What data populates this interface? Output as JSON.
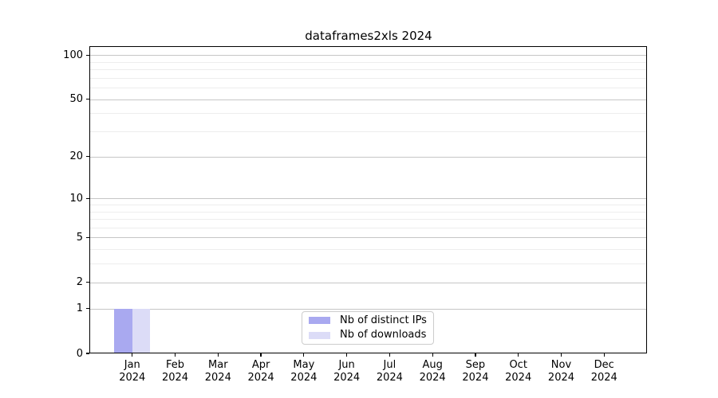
{
  "chart_data": {
    "type": "bar",
    "title": "dataframes2xls 2024",
    "year": "2024",
    "categories": [
      "Jan",
      "Feb",
      "Mar",
      "Apr",
      "May",
      "Jun",
      "Jul",
      "Aug",
      "Sep",
      "Oct",
      "Nov",
      "Dec"
    ],
    "series": [
      {
        "name": "Nb of distinct IPs",
        "color": "#a9a9f0",
        "values": [
          1,
          0,
          0,
          0,
          0,
          0,
          0,
          0,
          0,
          0,
          0,
          0
        ]
      },
      {
        "name": "Nb of downloads",
        "color": "#dcdcf7",
        "values": [
          1,
          0,
          0,
          0,
          0,
          0,
          0,
          0,
          0,
          0,
          0,
          0
        ]
      }
    ],
    "yscale": "log1p",
    "y_major_ticks": [
      100,
      50,
      20,
      10,
      5,
      2,
      1,
      0
    ],
    "y_minor_ticks": [
      90,
      80,
      70,
      60,
      40,
      30,
      9,
      8,
      7,
      6,
      4,
      3
    ],
    "ylim": [
      0,
      115
    ],
    "xlabel": "",
    "ylabel": "",
    "grid": true,
    "legend_position": "lower center",
    "colors": {
      "major_grid": "#c6c6c6",
      "minor_grid": "#ededed",
      "spine": "#000000",
      "text": "#000000",
      "legend_border": "#cccccc",
      "background": "#ffffff"
    }
  }
}
